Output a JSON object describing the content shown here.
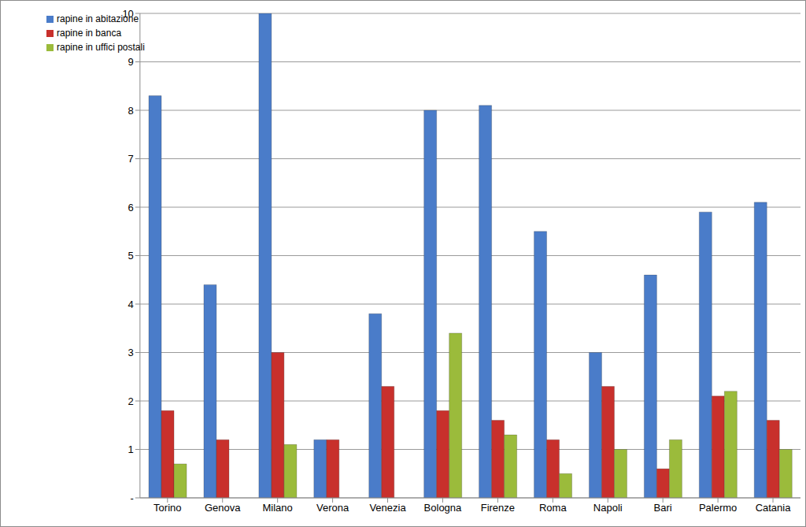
{
  "chart_data": {
    "type": "bar",
    "categories": [
      "Torino",
      "Genova",
      "Milano",
      "Verona",
      "Venezia",
      "Bologna",
      "Firenze",
      "Roma",
      "Napoli",
      "Bari",
      "Palermo",
      "Catania"
    ],
    "series": [
      {
        "name": "rapine in abitazione",
        "color": "#4a7cc9",
        "values": [
          8.3,
          4.4,
          10.0,
          1.2,
          3.8,
          8.0,
          8.1,
          5.5,
          3.0,
          4.6,
          5.9,
          6.1
        ]
      },
      {
        "name": "rapine in banca",
        "color": "#c8302c",
        "values": [
          1.8,
          1.2,
          3.0,
          1.2,
          2.3,
          1.8,
          1.6,
          1.2,
          2.3,
          0.6,
          2.1,
          1.6
        ]
      },
      {
        "name": "rapine in uffici postali",
        "color": "#9bbb3b",
        "values": [
          0.7,
          null,
          1.1,
          null,
          null,
          3.4,
          1.3,
          0.5,
          1.0,
          1.2,
          2.2,
          1.0
        ]
      }
    ],
    "ylim": [
      0,
      10
    ],
    "yticks": [
      {
        "value": 0,
        "label": "-"
      },
      1,
      2,
      3,
      4,
      5,
      6,
      7,
      8,
      9,
      10
    ],
    "grid": true,
    "legend": "top-left"
  }
}
